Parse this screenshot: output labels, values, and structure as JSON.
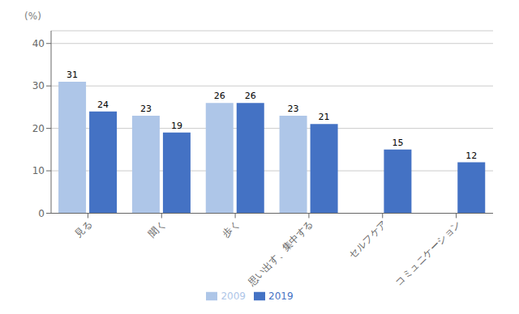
{
  "chart_data": {
    "type": "bar",
    "ylabel": "(%)",
    "categories": [
      "見る",
      "聞く",
      "歩く",
      "思い出す、集中する",
      "セルフケア",
      "コミュニケーション"
    ],
    "series": [
      {
        "name": "2009",
        "color": "#aec6e8",
        "values": [
          31,
          23,
          26,
          23,
          null,
          null
        ]
      },
      {
        "name": "2019",
        "color": "#4472c4",
        "values": [
          24,
          19,
          26,
          21,
          15,
          12
        ]
      }
    ],
    "ylim": [
      0,
      43
    ],
    "yticks": [
      0,
      10,
      20,
      30,
      40
    ],
    "grid": true,
    "data_labels": true,
    "legend": "bottom"
  }
}
